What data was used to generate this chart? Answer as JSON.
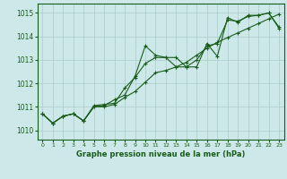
{
  "xlabel": "Graphe pression niveau de la mer (hPa)",
  "ylim": [
    1009.6,
    1015.4
  ],
  "xlim": [
    -0.5,
    23.5
  ],
  "yticks": [
    1010,
    1011,
    1012,
    1013,
    1014,
    1015
  ],
  "xticks": [
    0,
    1,
    2,
    3,
    4,
    5,
    6,
    7,
    8,
    9,
    10,
    11,
    12,
    13,
    14,
    15,
    16,
    17,
    18,
    19,
    20,
    21,
    22,
    23
  ],
  "bg_color": "#cce8e8",
  "grid_color": "#aacccc",
  "line_color": "#1a5c1a",
  "line1_y": [
    1010.7,
    1010.3,
    1010.6,
    1010.7,
    1010.4,
    1011.0,
    1011.05,
    1011.3,
    1011.5,
    1012.3,
    1013.6,
    1013.2,
    1013.1,
    1013.1,
    1012.7,
    1012.7,
    1013.7,
    1013.15,
    1014.8,
    1014.6,
    1014.9,
    1014.9,
    1015.0,
    1014.4
  ],
  "line2_y": [
    1010.7,
    1010.3,
    1010.6,
    1010.7,
    1010.4,
    1011.05,
    1011.1,
    1011.15,
    1011.8,
    1012.25,
    1012.85,
    1013.1,
    1013.1,
    1012.7,
    1012.7,
    1013.0,
    1013.6,
    1013.7,
    1014.7,
    1014.65,
    1014.85,
    1014.9,
    1015.0,
    1014.35
  ],
  "line3_y": [
    1010.7,
    1010.3,
    1010.6,
    1010.7,
    1010.4,
    1011.0,
    1011.0,
    1011.1,
    1011.4,
    1011.65,
    1012.05,
    1012.45,
    1012.55,
    1012.7,
    1012.9,
    1013.2,
    1013.5,
    1013.75,
    1013.95,
    1014.15,
    1014.35,
    1014.55,
    1014.75,
    1014.95
  ]
}
